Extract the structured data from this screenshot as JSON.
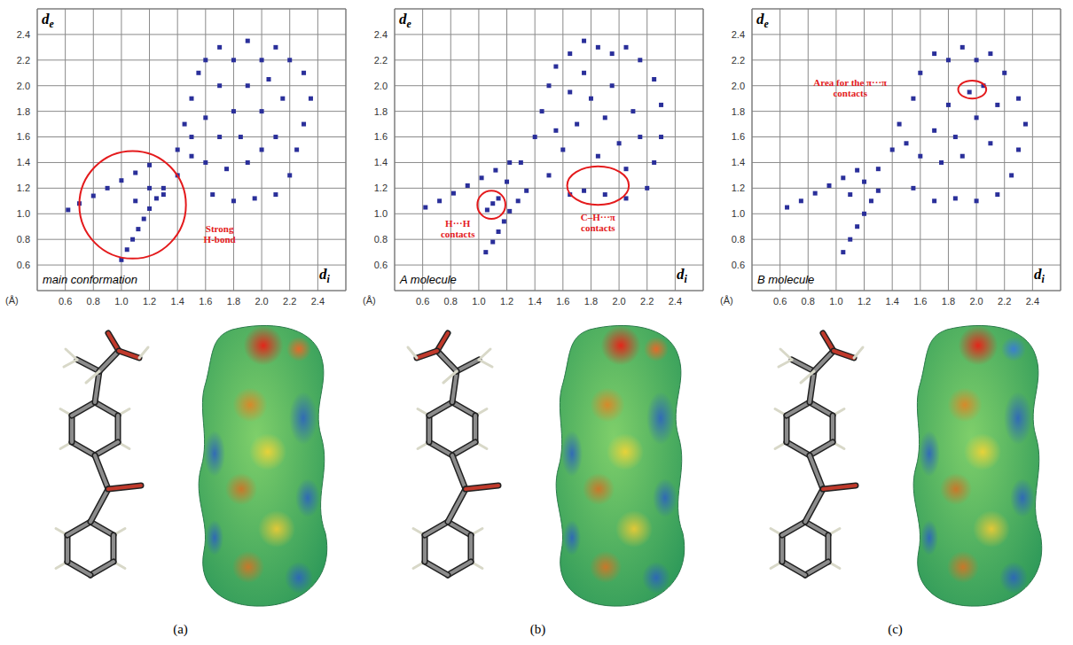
{
  "chart_data": [
    {
      "type": "scatter",
      "title": "main conformation",
      "caption": "(a)",
      "x_label": "di",
      "y_label": "de",
      "unit_label": "(Å)",
      "color": "#2a2f9a",
      "grid": true,
      "xlim": [
        0.4,
        2.6
      ],
      "ylim": [
        0.4,
        2.6
      ],
      "xticks": [
        0.6,
        0.8,
        {
          "value": 1,
          "label": "1.0"
        },
        1.2,
        1.4,
        1.6,
        1.8,
        {
          "value": 2,
          "label": "2.0"
        },
        2.2,
        2.4
      ],
      "yticks": [
        0.6,
        0.8,
        {
          "value": 1,
          "label": "1.0"
        },
        1.2,
        1.4,
        1.6,
        1.8,
        {
          "value": 2,
          "label": "2.0"
        },
        2.2,
        2.4
      ],
      "x": [
        0.62,
        0.7,
        0.8,
        0.9,
        1.0,
        1.1,
        1.2,
        1.0,
        1.04,
        1.08,
        1.12,
        1.16,
        1.2,
        1.25,
        1.3,
        1.1,
        1.2,
        1.3,
        1.4,
        1.5,
        1.45,
        1.5,
        1.55,
        1.6,
        1.7,
        1.8,
        1.9,
        2.0,
        2.1,
        2.2,
        2.3,
        2.35,
        2.3,
        2.25,
        2.2,
        2.1,
        1.95,
        1.8,
        1.65,
        1.6,
        1.7,
        1.8,
        1.9,
        2.0,
        2.1,
        1.9,
        1.75,
        1.6,
        1.7,
        2.0,
        2.15,
        1.5,
        1.85,
        2.05,
        1.4
      ],
      "values": [
        1.03,
        1.08,
        1.14,
        1.2,
        1.26,
        1.32,
        1.38,
        0.64,
        0.72,
        0.8,
        0.88,
        0.96,
        1.04,
        1.12,
        1.2,
        1.1,
        1.2,
        1.15,
        1.3,
        1.45,
        1.7,
        1.9,
        2.1,
        2.2,
        2.3,
        2.2,
        2.35,
        2.2,
        2.3,
        2.2,
        2.1,
        1.9,
        1.7,
        1.5,
        1.3,
        1.15,
        1.12,
        1.1,
        1.15,
        1.4,
        1.6,
        1.8,
        2.0,
        1.8,
        1.6,
        1.4,
        1.35,
        1.75,
        2.0,
        1.5,
        1.9,
        1.6,
        1.6,
        2.05,
        1.5
      ],
      "annotations": [
        {
          "text": "Strong H-bond",
          "color": "#e41a1c",
          "x": 1.08,
          "y": 1.07,
          "rx": 0.38,
          "ry": 0.42,
          "text_x": 1.7,
          "text_y": 0.86
        }
      ]
    },
    {
      "type": "scatter",
      "title": "A molecule",
      "caption": "(b)",
      "x_label": "di",
      "y_label": "de",
      "unit_label": "(Å)",
      "color": "#2a2f9a",
      "grid": true,
      "xlim": [
        0.4,
        2.6
      ],
      "ylim": [
        0.4,
        2.6
      ],
      "xticks": [
        0.6,
        0.8,
        {
          "value": 1,
          "label": "1.0"
        },
        1.2,
        1.4,
        1.6,
        1.8,
        {
          "value": 2,
          "label": "2.0"
        },
        2.2,
        2.4
      ],
      "yticks": [
        0.6,
        0.8,
        {
          "value": 1,
          "label": "1.0"
        },
        1.2,
        1.4,
        1.6,
        1.8,
        {
          "value": 2,
          "label": "2.0"
        },
        2.2,
        2.4
      ],
      "x": [
        0.62,
        0.72,
        0.82,
        0.92,
        1.02,
        1.12,
        1.22,
        1.05,
        1.1,
        1.14,
        1.18,
        1.22,
        1.28,
        1.34,
        1.06,
        1.1,
        1.14,
        1.2,
        1.3,
        1.4,
        1.45,
        1.5,
        1.55,
        1.65,
        1.75,
        1.85,
        1.95,
        2.05,
        2.15,
        2.25,
        2.3,
        2.3,
        2.25,
        2.2,
        2.05,
        1.9,
        1.75,
        1.65,
        1.5,
        1.6,
        1.7,
        1.8,
        1.9,
        2.0,
        2.1,
        1.95,
        1.65,
        1.55,
        1.85,
        2.05,
        2.15,
        1.75
      ],
      "values": [
        1.05,
        1.1,
        1.16,
        1.22,
        1.28,
        1.34,
        1.4,
        0.7,
        0.78,
        0.86,
        0.94,
        1.02,
        1.1,
        1.18,
        1.03,
        1.08,
        1.12,
        1.25,
        1.4,
        1.6,
        1.8,
        2.0,
        2.15,
        2.25,
        2.35,
        2.3,
        2.25,
        2.3,
        2.2,
        2.05,
        1.85,
        1.6,
        1.4,
        1.2,
        1.12,
        1.15,
        1.18,
        1.15,
        1.3,
        1.5,
        1.7,
        1.9,
        1.75,
        1.55,
        1.8,
        2.0,
        1.95,
        1.65,
        1.45,
        1.35,
        1.6,
        2.1
      ],
      "annotations": [
        {
          "text": "H···H contacts",
          "color": "#e41a1c",
          "x": 1.09,
          "y": 1.07,
          "rx": 0.1,
          "ry": 0.11,
          "text_x": 0.85,
          "text_y": 0.9
        },
        {
          "text": "C–H···π contacts",
          "color": "#e41a1c",
          "x": 1.85,
          "y": 1.22,
          "rx": 0.22,
          "ry": 0.15,
          "text_x": 1.85,
          "text_y": 0.95
        }
      ]
    },
    {
      "type": "scatter",
      "title": "B molecule",
      "caption": "(c)",
      "x_label": "di",
      "y_label": "de",
      "unit_label": "(Å)",
      "color": "#2a2f9a",
      "grid": true,
      "xlim": [
        0.4,
        2.6
      ],
      "ylim": [
        0.4,
        2.6
      ],
      "xticks": [
        0.6,
        0.8,
        {
          "value": 1,
          "label": "1.0"
        },
        1.2,
        1.4,
        1.6,
        1.8,
        {
          "value": 2,
          "label": "2.0"
        },
        2.2,
        2.4
      ],
      "yticks": [
        0.6,
        0.8,
        {
          "value": 1,
          "label": "1.0"
        },
        1.2,
        1.4,
        1.6,
        1.8,
        {
          "value": 2,
          "label": "2.0"
        },
        2.2,
        2.4
      ],
      "x": [
        0.65,
        0.75,
        0.85,
        0.95,
        1.05,
        1.15,
        1.05,
        1.1,
        1.15,
        1.2,
        1.25,
        1.3,
        1.1,
        1.2,
        1.3,
        1.4,
        1.45,
        1.55,
        1.6,
        1.7,
        1.8,
        1.9,
        2.0,
        2.1,
        2.2,
        2.3,
        2.35,
        2.3,
        2.25,
        2.15,
        2.0,
        1.85,
        1.7,
        1.55,
        1.6,
        1.7,
        1.8,
        1.95,
        2.0,
        2.1,
        1.9,
        2.15,
        1.75,
        1.5,
        2.05,
        1.85
      ],
      "values": [
        1.05,
        1.1,
        1.16,
        1.22,
        1.28,
        1.34,
        0.7,
        0.8,
        0.9,
        1.0,
        1.1,
        1.18,
        1.15,
        1.25,
        1.35,
        1.5,
        1.7,
        1.9,
        2.1,
        2.25,
        2.2,
        2.3,
        2.2,
        2.25,
        2.1,
        1.9,
        1.7,
        1.5,
        1.3,
        1.15,
        1.1,
        1.12,
        1.1,
        1.2,
        1.45,
        1.65,
        1.85,
        1.95,
        1.75,
        1.55,
        1.45,
        1.85,
        1.4,
        1.55,
        2.0,
        1.6
      ],
      "annotations": [
        {
          "text": "Area for the π···π contacts",
          "color": "#e41a1c",
          "x": 1.97,
          "y": 1.97,
          "rx": 0.1,
          "ry": 0.07,
          "text_x": 1.1,
          "text_y": 2.0
        }
      ]
    }
  ]
}
